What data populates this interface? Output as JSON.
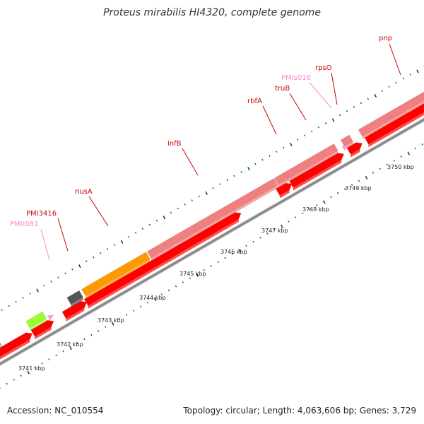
{
  "title": "Proteus mirabilis HI4320, complete genome",
  "footer": {
    "accession": "Accession: NC_010554",
    "summary": "Topology: circular; Length: 4,063,606 bp; Genes: 3,729"
  },
  "colors": {
    "background": "#ffffff",
    "backbone": "#808080",
    "cds": "#ff0000",
    "gene": "#f08080",
    "trna": "#ff9ad0",
    "cog_orange": "#ff9900",
    "cog_dark": "#555555",
    "cog_cyan": "#17cfcf",
    "cog_lime": "#99ff33",
    "tick_dot": "#007000",
    "tick_major": "#006000",
    "label_red": "#cc0000",
    "label_pink": "#ff88c8"
  },
  "scale_labels": [
    "3741 kbp",
    "3742 kbp",
    "3743 kbp",
    "3744 kbp",
    "3745 kbp",
    "3746 kbp",
    "3747 kbp",
    "3748 kbp",
    "3749 kbp",
    "3750 kbp"
  ],
  "gene_labels": [
    {
      "text": "PMIt081",
      "kind": "trna"
    },
    {
      "text": "PMI3416",
      "kind": "cds"
    },
    {
      "text": "nusA",
      "kind": "cds"
    },
    {
      "text": "infB",
      "kind": "cds"
    },
    {
      "text": "rbfA",
      "kind": "cds"
    },
    {
      "text": "truB",
      "kind": "cds"
    },
    {
      "text": "PMIs016",
      "kind": "trna"
    },
    {
      "text": "rpsO",
      "kind": "cds"
    },
    {
      "text": "pnp",
      "kind": "cds"
    }
  ]
}
